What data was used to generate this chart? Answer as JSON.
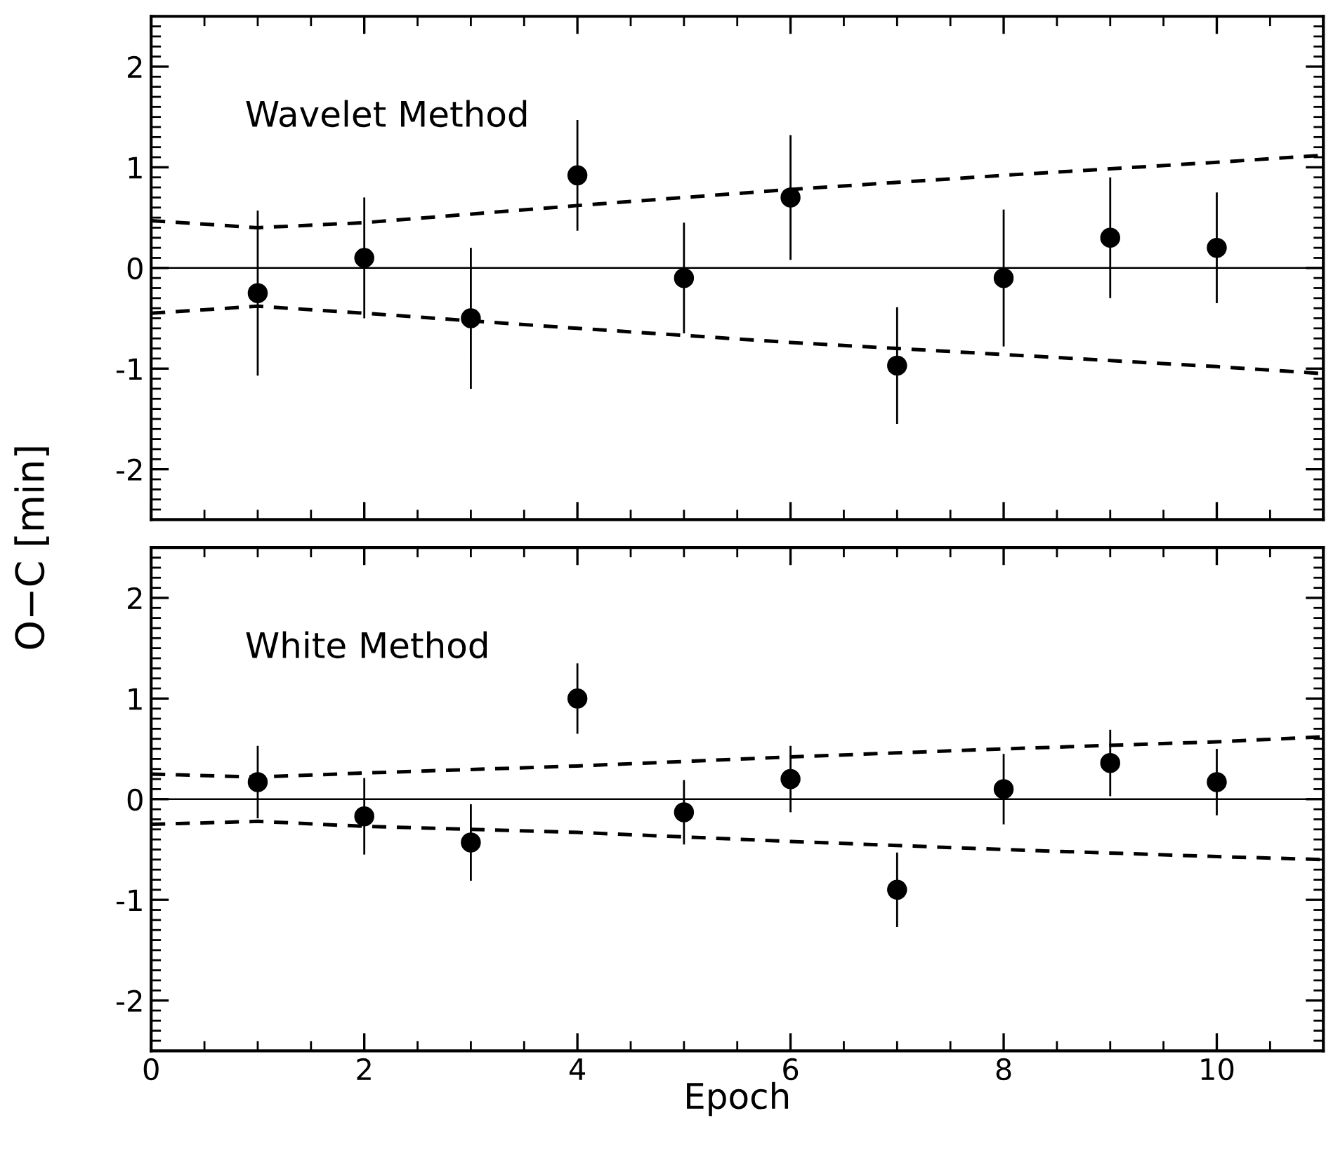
{
  "chart_data": [
    {
      "type": "scatter",
      "ylabel": "O−C [min]",
      "annotations": [
        "Wavelet Method"
      ],
      "xlim": [
        0,
        11
      ],
      "xticks": [
        0,
        2,
        4,
        6,
        8,
        10
      ],
      "ylim": [
        -2.5,
        2.5
      ],
      "yticks": [
        -2,
        -1,
        0,
        1,
        2
      ],
      "tick_labels": "y",
      "grid": false,
      "legend": false,
      "marker": "circle",
      "ref_lines": [
        {
          "axis": "y",
          "value": 0,
          "color": "#000000",
          "line_style": "solid"
        }
      ],
      "series": [
        {
          "color": "#000000",
          "x": [
            1,
            2,
            3,
            4,
            5,
            6,
            7,
            8,
            9,
            10
          ],
          "values": [
            -0.25,
            0.1,
            -0.5,
            0.92,
            -0.1,
            0.7,
            -0.97,
            -0.1,
            0.3,
            0.2
          ],
          "errors": [
            0.82,
            0.6,
            0.7,
            0.55,
            0.55,
            0.62,
            0.58,
            0.68,
            0.6,
            0.55
          ]
        },
        {
          "type": "line",
          "color": "#000000",
          "line_style": "dashed",
          "marker": "none",
          "x": [
            0,
            1,
            2,
            4,
            6,
            8,
            10,
            11
          ],
          "values": [
            0.47,
            0.4,
            0.45,
            0.62,
            0.78,
            0.92,
            1.05,
            1.12
          ]
        },
        {
          "type": "line",
          "color": "#000000",
          "line_style": "dashed",
          "marker": "none",
          "x": [
            0,
            1,
            2,
            4,
            6,
            8,
            10,
            11
          ],
          "values": [
            -0.45,
            -0.38,
            -0.45,
            -0.6,
            -0.74,
            -0.86,
            -0.98,
            -1.05
          ]
        }
      ]
    },
    {
      "type": "scatter",
      "xlabel": "Epoch",
      "annotations": [
        "White Method"
      ],
      "xlim": [
        0,
        11
      ],
      "xticks": [
        0,
        2,
        4,
        6,
        8,
        10
      ],
      "ylim": [
        -2.5,
        2.5
      ],
      "yticks": [
        -2,
        -1,
        0,
        1,
        2
      ],
      "grid": false,
      "legend": false,
      "marker": "circle",
      "ref_lines": [
        {
          "axis": "y",
          "value": 0,
          "color": "#000000",
          "line_style": "solid"
        }
      ],
      "series": [
        {
          "color": "#000000",
          "x": [
            1,
            2,
            3,
            4,
            5,
            6,
            7,
            8,
            9,
            10
          ],
          "values": [
            0.17,
            -0.17,
            -0.43,
            1.0,
            -0.13,
            0.2,
            -0.9,
            0.1,
            0.36,
            0.17
          ],
          "errors": [
            0.36,
            0.38,
            0.38,
            0.35,
            0.32,
            0.33,
            0.37,
            0.35,
            0.33,
            0.33
          ]
        },
        {
          "type": "line",
          "color": "#000000",
          "line_style": "dashed",
          "marker": "none",
          "x": [
            0,
            1,
            2,
            4,
            6,
            8,
            10,
            11
          ],
          "values": [
            0.25,
            0.22,
            0.26,
            0.33,
            0.42,
            0.5,
            0.57,
            0.62
          ]
        },
        {
          "type": "line",
          "color": "#000000",
          "line_style": "dashed",
          "marker": "none",
          "x": [
            0,
            1,
            2,
            4,
            6,
            8,
            10,
            11
          ],
          "values": [
            -0.25,
            -0.22,
            -0.27,
            -0.33,
            -0.42,
            -0.5,
            -0.57,
            -0.6
          ]
        }
      ]
    }
  ]
}
